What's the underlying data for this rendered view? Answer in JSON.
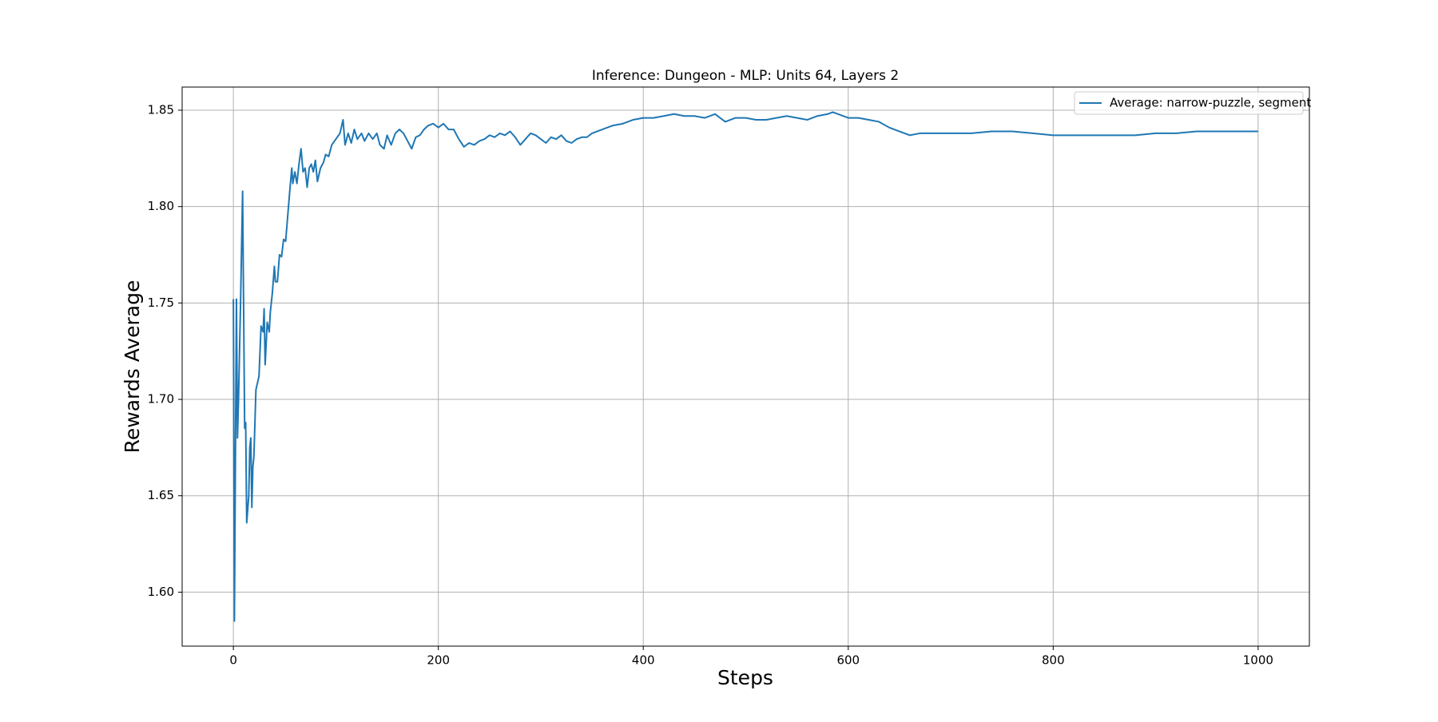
{
  "chart_data": {
    "type": "line",
    "title": "Inference: Dungeon - MLP: Units 64, Layers 2",
    "x_label": "Steps",
    "y_label": "Rewards Average",
    "x": [
      0,
      1,
      2,
      3,
      4,
      5,
      7,
      9,
      11,
      12,
      13,
      15,
      16,
      17,
      18,
      19,
      20,
      22,
      25,
      27,
      29,
      30,
      31,
      33,
      35,
      36,
      38,
      40,
      41,
      43,
      45,
      47,
      49,
      51,
      53,
      55,
      57,
      58,
      60,
      62,
      64,
      66,
      68,
      70,
      72,
      74,
      76,
      78,
      80,
      82,
      85,
      88,
      90,
      93,
      96,
      100,
      104,
      107,
      109,
      112,
      115,
      118,
      121,
      125,
      128,
      132,
      136,
      140,
      143,
      147,
      150,
      154,
      158,
      162,
      166,
      170,
      174,
      178,
      182,
      186,
      190,
      195,
      200,
      205,
      210,
      215,
      220,
      225,
      230,
      235,
      240,
      245,
      250,
      255,
      260,
      265,
      270,
      275,
      280,
      285,
      290,
      295,
      300,
      305,
      310,
      315,
      320,
      325,
      330,
      335,
      340,
      345,
      350,
      360,
      370,
      380,
      390,
      400,
      410,
      420,
      430,
      440,
      450,
      460,
      470,
      480,
      490,
      500,
      510,
      520,
      530,
      540,
      550,
      560,
      570,
      580,
      585,
      590,
      600,
      610,
      620,
      630,
      640,
      650,
      660,
      670,
      680,
      700,
      720,
      740,
      760,
      780,
      800,
      820,
      840,
      860,
      880,
      900,
      920,
      940,
      960,
      980,
      1000
    ],
    "series": [
      {
        "name": "Average: narrow-puzzle, segment",
        "color": "#1f77b4",
        "values": [
          1.752,
          1.585,
          1.67,
          1.752,
          1.68,
          1.7,
          1.75,
          1.808,
          1.685,
          1.688,
          1.636,
          1.65,
          1.675,
          1.68,
          1.644,
          1.665,
          1.67,
          1.705,
          1.712,
          1.738,
          1.735,
          1.747,
          1.718,
          1.74,
          1.735,
          1.745,
          1.755,
          1.769,
          1.761,
          1.761,
          1.775,
          1.774,
          1.783,
          1.782,
          1.795,
          1.808,
          1.82,
          1.812,
          1.818,
          1.812,
          1.822,
          1.83,
          1.818,
          1.82,
          1.81,
          1.82,
          1.822,
          1.818,
          1.824,
          1.813,
          1.82,
          1.823,
          1.827,
          1.826,
          1.832,
          1.835,
          1.838,
          1.845,
          1.832,
          1.838,
          1.833,
          1.84,
          1.835,
          1.838,
          1.834,
          1.838,
          1.835,
          1.838,
          1.832,
          1.83,
          1.837,
          1.832,
          1.838,
          1.84,
          1.838,
          1.834,
          1.83,
          1.836,
          1.837,
          1.84,
          1.842,
          1.843,
          1.841,
          1.843,
          1.84,
          1.84,
          1.835,
          1.831,
          1.833,
          1.832,
          1.834,
          1.835,
          1.837,
          1.836,
          1.838,
          1.837,
          1.839,
          1.836,
          1.832,
          1.835,
          1.838,
          1.837,
          1.835,
          1.833,
          1.836,
          1.835,
          1.837,
          1.834,
          1.833,
          1.835,
          1.836,
          1.836,
          1.838,
          1.84,
          1.842,
          1.843,
          1.845,
          1.846,
          1.846,
          1.847,
          1.848,
          1.847,
          1.847,
          1.846,
          1.848,
          1.844,
          1.846,
          1.846,
          1.845,
          1.845,
          1.846,
          1.847,
          1.846,
          1.845,
          1.847,
          1.848,
          1.849,
          1.848,
          1.846,
          1.846,
          1.845,
          1.844,
          1.841,
          1.839,
          1.837,
          1.838,
          1.838,
          1.838,
          1.838,
          1.839,
          1.839,
          1.838,
          1.837,
          1.837,
          1.837,
          1.837,
          1.837,
          1.838,
          1.838,
          1.839,
          1.839,
          1.839,
          1.839
        ]
      }
    ],
    "xlim": [
      -50,
      1050
    ],
    "xticks": [
      0,
      200,
      400,
      600,
      800,
      1000
    ],
    "ylim": [
      1.572,
      1.862
    ],
    "yticks": [
      {
        "value": 1.6,
        "label": "1.60"
      },
      {
        "value": 1.65,
        "label": "1.65"
      },
      {
        "value": 1.7,
        "label": "1.70"
      },
      {
        "value": 1.75,
        "label": "1.75"
      },
      {
        "value": 1.8,
        "label": "1.80"
      },
      {
        "value": 1.85,
        "label": "1.85"
      }
    ],
    "grid": true,
    "legend": "upper right"
  }
}
